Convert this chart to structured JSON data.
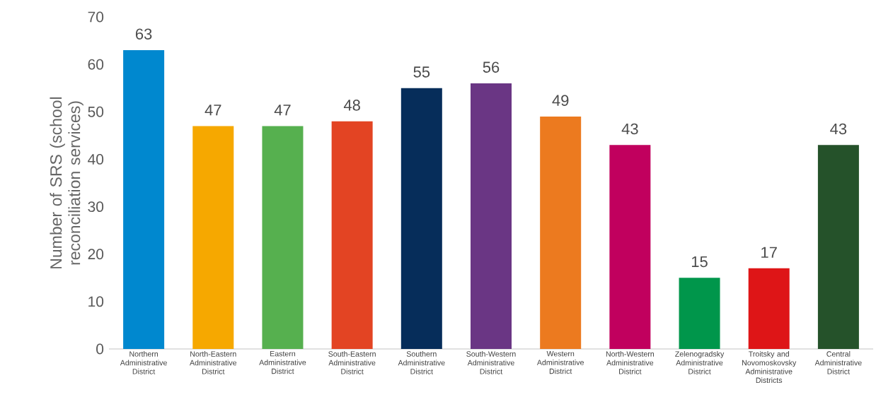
{
  "chart_data": {
    "type": "bar",
    "ylabel": "Number of SRS (school reconciliation services)",
    "categories": [
      "Northern Administrative District",
      "North-Eastern Administrative District",
      "Eastern Administrative District",
      "South-Eastern Administrative District",
      "Southern Administrative District",
      "South-Western Administrative District",
      "Western Administrative District",
      "North-Western Administrative District",
      "Zelenogradsky Administrative District",
      "Troitsky and Novomoskovsky Administrative Districts",
      "Central Administrative District"
    ],
    "values": [
      63,
      47,
      47,
      48,
      55,
      56,
      49,
      43,
      15,
      17,
      43
    ],
    "colors": [
      "#0088cf",
      "#f6a800",
      "#56b04f",
      "#e34423",
      "#062d5a",
      "#6a3684",
      "#ec7a1f",
      "#c1005e",
      "#00964b",
      "#de1517",
      "#25522a"
    ],
    "ylim": [
      0,
      70
    ],
    "yticks": [
      0,
      10,
      20,
      30,
      40,
      50,
      60,
      70
    ],
    "data_labels": true
  }
}
